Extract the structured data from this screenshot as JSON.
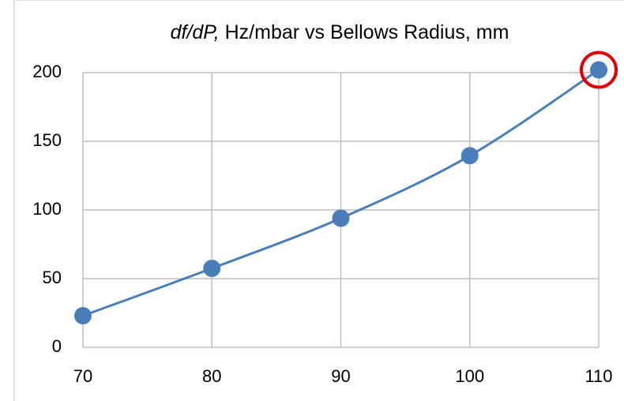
{
  "chart_data": {
    "type": "scatter",
    "title": [
      "df/dP,",
      "Hz/mbar vs Bellows Radius, mm"
    ],
    "x": [
      70,
      80,
      90,
      100,
      110
    ],
    "series": [
      {
        "color": "#4a7ebb",
        "values": [
          23,
          57.5,
          94,
          139.5,
          202
        ]
      }
    ],
    "xlim": [
      70,
      110
    ],
    "xticks": [
      70,
      80,
      90,
      100,
      110
    ],
    "ylim": [
      0,
      200
    ],
    "yticks": [
      0,
      50,
      100,
      150,
      200
    ],
    "grid": true,
    "smooth": true
  }
}
